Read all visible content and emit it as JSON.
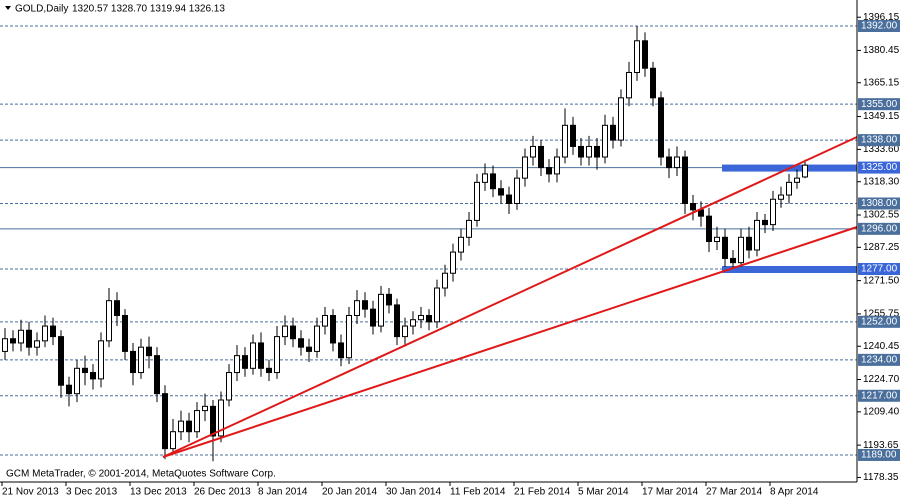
{
  "chart_data": {
    "type": "candlestick",
    "title": "GOLD,Daily",
    "subtitle": "1320.57 1328.70 1319.94 1326.13",
    "footer": "GCM MetaTrader, © 2001-2014, MetaQuotes Software Corp.",
    "categories": [
      "21 Nov 2013",
      null,
      null,
      null,
      null,
      null,
      null,
      null,
      "3 Dec 2013",
      null,
      null,
      null,
      null,
      null,
      null,
      null,
      "13 Dec 2013",
      null,
      null,
      null,
      null,
      null,
      null,
      null,
      "26 Dec 2013",
      null,
      null,
      null,
      null,
      null,
      null,
      null,
      "8 Jan 2014",
      null,
      null,
      null,
      null,
      null,
      null,
      null,
      "20 Jan 2014",
      null,
      null,
      null,
      null,
      null,
      null,
      null,
      "30 Jan 2014",
      null,
      null,
      null,
      null,
      null,
      null,
      null,
      "11 Feb 2014",
      null,
      null,
      null,
      null,
      null,
      null,
      null,
      "21 Feb 2014",
      null,
      null,
      null,
      null,
      null,
      null,
      null,
      "5 Mar 2014",
      null,
      null,
      null,
      null,
      null,
      null,
      null,
      "17 Mar 2014",
      null,
      null,
      null,
      null,
      null,
      null,
      null,
      "27 Mar 2014",
      null,
      null,
      null,
      null,
      null,
      null,
      null,
      "8 Apr 2014",
      null,
      null,
      null,
      null
    ],
    "open": [
      1238,
      1244,
      1242,
      1248,
      1240,
      1243,
      1250,
      1245,
      1222,
      1218,
      1230,
      1228,
      1225,
      1243,
      1262,
      1255,
      1238,
      1228,
      1240,
      1236,
      1218,
      1192,
      1200,
      1205,
      1200,
      1210,
      1212,
      1198,
      1215,
      1228,
      1236,
      1230,
      1242,
      1230,
      1228,
      1245,
      1250,
      1244,
      1240,
      1238,
      1250,
      1255,
      1242,
      1235,
      1255,
      1262,
      1258,
      1250,
      1265,
      1260,
      1245,
      1250,
      1253,
      1255,
      1252,
      1268,
      1275,
      1285,
      1292,
      1300,
      1318,
      1322,
      1315,
      1312,
      1308,
      1320,
      1330,
      1335,
      1325,
      1322,
      1330,
      1345,
      1335,
      1330,
      1335,
      1330,
      1345,
      1338,
      1358,
      1370,
      1385,
      1372,
      1358,
      1330,
      1325,
      1330,
      1308,
      1305,
      1302,
      1290,
      1292,
      1282,
      1280,
      1292,
      1286,
      1300,
      1298,
      1310,
      1312,
      1318,
      1320.57
    ],
    "high": [
      1249,
      1248,
      1253,
      1252,
      1247,
      1255,
      1254,
      1248,
      1226,
      1234,
      1236,
      1232,
      1247,
      1268,
      1266,
      1258,
      1242,
      1244,
      1245,
      1240,
      1222,
      1206,
      1210,
      1209,
      1214,
      1218,
      1215,
      1219,
      1232,
      1241,
      1240,
      1246,
      1247,
      1234,
      1250,
      1255,
      1254,
      1248,
      1244,
      1254,
      1259,
      1258,
      1246,
      1259,
      1267,
      1266,
      1262,
      1269,
      1268,
      1263,
      1254,
      1257,
      1259,
      1258,
      1272,
      1279,
      1289,
      1296,
      1304,
      1322,
      1327,
      1326,
      1319,
      1316,
      1324,
      1334,
      1340,
      1338,
      1329,
      1334,
      1353,
      1349,
      1339,
      1340,
      1339,
      1350,
      1349,
      1362,
      1375,
      1392,
      1389,
      1375,
      1361,
      1334,
      1335,
      1333,
      1312,
      1309,
      1306,
      1297,
      1296,
      1286,
      1296,
      1297,
      1304,
      1303,
      1314,
      1316,
      1322,
      1324,
      1328.7
    ],
    "low": [
      1234,
      1238,
      1238,
      1236,
      1236,
      1240,
      1241,
      1216,
      1212,
      1214,
      1222,
      1220,
      1221,
      1240,
      1250,
      1234,
      1222,
      1225,
      1230,
      1214,
      1187,
      1190,
      1196,
      1195,
      1197,
      1205,
      1186,
      1195,
      1212,
      1224,
      1226,
      1227,
      1226,
      1224,
      1225,
      1241,
      1240,
      1236,
      1233,
      1235,
      1246,
      1238,
      1231,
      1232,
      1251,
      1254,
      1246,
      1247,
      1256,
      1241,
      1241,
      1246,
      1249,
      1248,
      1249,
      1264,
      1271,
      1281,
      1288,
      1297,
      1314,
      1311,
      1308,
      1303,
      1305,
      1316,
      1326,
      1321,
      1318,
      1318,
      1327,
      1331,
      1326,
      1326,
      1324,
      1327,
      1334,
      1335,
      1354,
      1366,
      1368,
      1354,
      1326,
      1320,
      1321,
      1303,
      1300,
      1297,
      1285,
      1286,
      1278,
      1277,
      1278,
      1282,
      1283,
      1294,
      1295,
      1306,
      1308,
      1315,
      1319.94
    ],
    "close": [
      1244,
      1242,
      1248,
      1240,
      1243,
      1250,
      1245,
      1222,
      1218,
      1230,
      1228,
      1225,
      1243,
      1262,
      1255,
      1238,
      1228,
      1240,
      1236,
      1218,
      1192,
      1200,
      1205,
      1200,
      1210,
      1212,
      1198,
      1215,
      1228,
      1236,
      1230,
      1242,
      1230,
      1228,
      1245,
      1250,
      1244,
      1240,
      1238,
      1250,
      1255,
      1242,
      1235,
      1255,
      1262,
      1258,
      1250,
      1265,
      1260,
      1245,
      1250,
      1253,
      1255,
      1252,
      1268,
      1275,
      1285,
      1292,
      1300,
      1318,
      1322,
      1315,
      1312,
      1308,
      1320,
      1330,
      1335,
      1325,
      1322,
      1330,
      1345,
      1335,
      1330,
      1335,
      1330,
      1345,
      1338,
      1358,
      1370,
      1385,
      1372,
      1358,
      1330,
      1325,
      1330,
      1308,
      1305,
      1302,
      1290,
      1292,
      1282,
      1280,
      1292,
      1286,
      1300,
      1298,
      1310,
      1312,
      1318,
      1320,
      1326.13
    ],
    "up_color": "#ffffff",
    "down_color": "#000000",
    "ylim": [
      1176.2,
      1404.3
    ],
    "yticks": [
      1396.15,
      1380.45,
      1365.15,
      1349.15,
      {
        "value": 1333.6,
        "label": "1333.60"
      },
      {
        "value": 1318.3,
        "label": "1318.30"
      },
      1302.55,
      1287.25,
      {
        "value": 1271.5,
        "label": "1271.50"
      },
      1255.75,
      1240.45,
      {
        "value": 1224.7,
        "label": "1224.70"
      },
      {
        "value": 1209.4,
        "label": "1209.40"
      },
      1193.65,
      1178.35
    ],
    "levels": [
      {
        "value": 1392,
        "label": "1392.00",
        "style": "dashed"
      },
      {
        "value": 1355,
        "label": "1355.00",
        "style": "dashed"
      },
      {
        "value": 1338,
        "label": "1338.00",
        "style": "dashed"
      },
      {
        "value": 1325,
        "label": "1325.00",
        "style": "solid",
        "highlight": true
      },
      {
        "value": 1308,
        "label": "1308.00",
        "style": "dashed"
      },
      {
        "value": 1296,
        "label": "1296.00",
        "style": "solid"
      },
      {
        "value": 1277,
        "label": "1277.00",
        "style": "dashed",
        "highlight": true
      },
      {
        "value": 1252,
        "label": "1252.00",
        "style": "dashed"
      },
      {
        "value": 1234,
        "label": "1234.00",
        "style": "dashed"
      },
      {
        "value": 1217,
        "label": "1217.00",
        "style": "dashed"
      },
      {
        "value": 1189,
        "label": "1189.00",
        "style": "dashed"
      }
    ],
    "level_color": "#4a6f9c",
    "highlight_color": "#3a66d8"
  }
}
